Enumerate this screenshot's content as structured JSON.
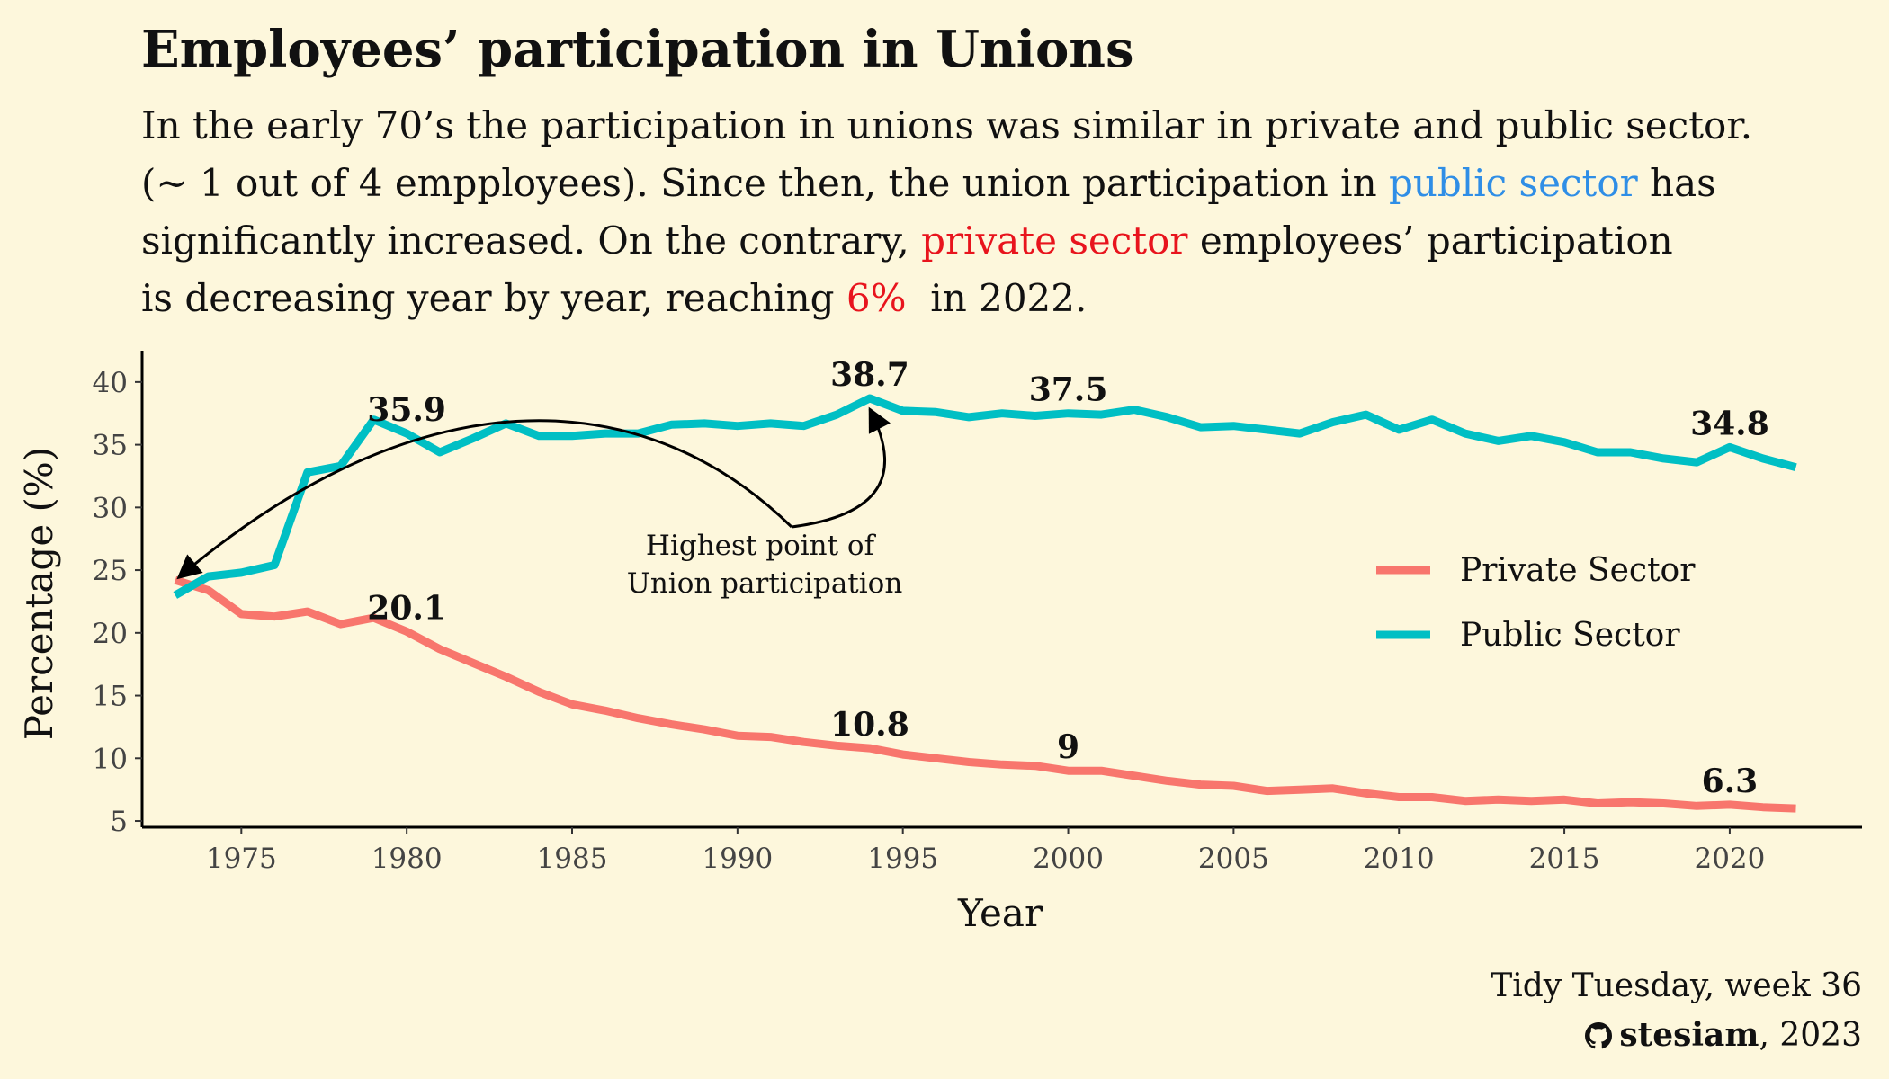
{
  "title": "Employees’ participation in Unions",
  "subtitle": {
    "line1": "In the early 70’s the participation in unions was similar in private and public sector.",
    "line2a": "(~ 1 out of 4 empployees). Since then, the union participation in ",
    "line2b": "public sector",
    "line2c": " has",
    "line3a": "significantly increased. On the contrary, ",
    "line3b": "private sector",
    "line3c": " employees’ participation",
    "line4a": "is decreasing year by year, reaching ",
    "line4b": "6%",
    "line4c": "  in 2022."
  },
  "caption": {
    "line1": "Tidy Tuesday, week 36",
    "author": "stesiam",
    "year": ", 2023",
    "github_icon": "github-icon"
  },
  "colors": {
    "background": "#fdf7dc",
    "private": "#f8766d",
    "public": "#00bfc4",
    "highlight_public": "#2f8ee6",
    "highlight_private": "#e8141d"
  },
  "chart_data": {
    "type": "line",
    "xlabel": "Year",
    "ylabel": "Percentage (%)",
    "xlim": [
      1972,
      2024
    ],
    "ylim": [
      4.5,
      42.5
    ],
    "xticks": [
      1975,
      1980,
      1985,
      1990,
      1995,
      2000,
      2005,
      2010,
      2015,
      2020
    ],
    "yticks": [
      5,
      10,
      15,
      20,
      25,
      30,
      35,
      40
    ],
    "grid": false,
    "legend": "right",
    "x": [
      1973,
      1974,
      1975,
      1976,
      1977,
      1978,
      1979,
      1980,
      1981,
      1982,
      1983,
      1984,
      1985,
      1986,
      1987,
      1988,
      1989,
      1990,
      1991,
      1992,
      1993,
      1994,
      1995,
      1996,
      1997,
      1998,
      1999,
      2000,
      2001,
      2002,
      2003,
      2004,
      2005,
      2006,
      2007,
      2008,
      2009,
      2010,
      2011,
      2012,
      2013,
      2014,
      2015,
      2016,
      2017,
      2018,
      2019,
      2020,
      2021,
      2022
    ],
    "series": [
      {
        "name": "Private Sector",
        "color": "#f8766d",
        "values": [
          24.2,
          23.4,
          21.5,
          21.3,
          21.7,
          20.7,
          21.2,
          20.1,
          18.7,
          17.6,
          16.5,
          15.3,
          14.3,
          13.8,
          13.2,
          12.7,
          12.3,
          11.8,
          11.7,
          11.3,
          11.0,
          10.8,
          10.3,
          10.0,
          9.7,
          9.5,
          9.4,
          9.0,
          9.0,
          8.6,
          8.2,
          7.9,
          7.8,
          7.4,
          7.5,
          7.6,
          7.2,
          6.9,
          6.9,
          6.6,
          6.7,
          6.6,
          6.7,
          6.4,
          6.5,
          6.4,
          6.2,
          6.3,
          6.1,
          6.0
        ]
      },
      {
        "name": "Public Sector",
        "color": "#00bfc4",
        "values": [
          23.0,
          24.5,
          24.8,
          25.4,
          32.8,
          33.3,
          37.0,
          35.9,
          34.4,
          35.5,
          36.7,
          35.7,
          35.7,
          35.9,
          35.9,
          36.6,
          36.7,
          36.5,
          36.7,
          36.5,
          37.4,
          38.7,
          37.7,
          37.6,
          37.2,
          37.5,
          37.3,
          37.5,
          37.4,
          37.8,
          37.2,
          36.4,
          36.5,
          36.2,
          35.9,
          36.8,
          37.4,
          36.2,
          37.0,
          35.9,
          35.3,
          35.7,
          35.2,
          34.4,
          34.4,
          33.9,
          33.6,
          34.8,
          33.9,
          33.2
        ]
      }
    ],
    "labels": [
      {
        "series": "Public Sector",
        "x": 1980,
        "text": "35.9"
      },
      {
        "series": "Public Sector",
        "x": 1994,
        "text": "38.7"
      },
      {
        "series": "Public Sector",
        "x": 2000,
        "text": "37.5"
      },
      {
        "series": "Public Sector",
        "x": 2020,
        "text": "34.8"
      },
      {
        "series": "Private Sector",
        "x": 1980,
        "text": "20.1"
      },
      {
        "series": "Private Sector",
        "x": 1994,
        "text": "10.8"
      },
      {
        "series": "Private Sector",
        "x": 2000,
        "text": "9"
      },
      {
        "series": "Private Sector",
        "x": 2020,
        "text": "6.3"
      }
    ],
    "annotation": {
      "line1": "Highest point of",
      "line2": "Union participation"
    }
  }
}
